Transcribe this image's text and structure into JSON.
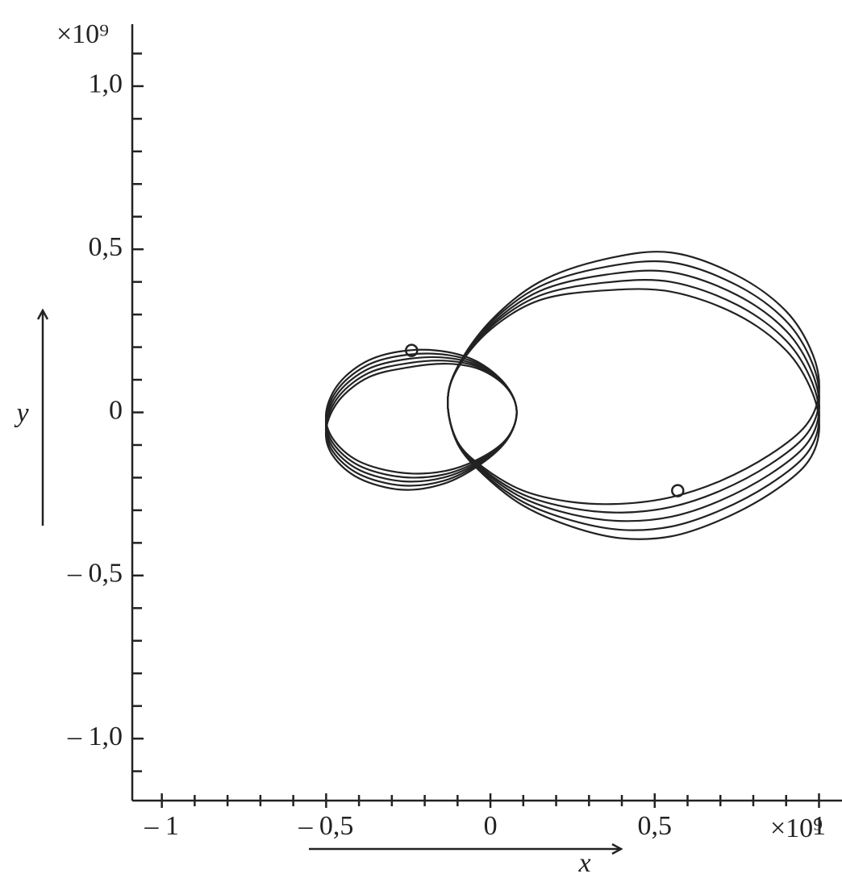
{
  "chart_data": {
    "type": "line",
    "xlabel": "x",
    "ylabel": "y",
    "x_scale_label": "×10⁹",
    "y_scale_label": "×10⁹",
    "xlim": [
      -1.09,
      1.07
    ],
    "ylim": [
      -1.19,
      1.19
    ],
    "xticks": [
      {
        "value": -1,
        "label": "– 1"
      },
      {
        "value": -0.5,
        "label": "– 0,5"
      },
      0,
      {
        "value": 0.5,
        "label": "0,5"
      },
      1
    ],
    "yticks": [
      {
        "value": -1,
        "label": "– 1,0"
      },
      {
        "value": -0.5,
        "label": "– 0,5"
      },
      0,
      {
        "value": 0.5,
        "label": "0,5"
      },
      {
        "value": 1,
        "label": "1,0"
      }
    ],
    "xminorticks": [
      -0.9,
      -0.8,
      -0.7,
      -0.6,
      -0.4,
      -0.3,
      -0.2,
      -0.1,
      0.1,
      0.2,
      0.3,
      0.4,
      0.6,
      0.7,
      0.8,
      0.9
    ],
    "yminorticks": [
      -1.1,
      -0.9,
      -0.8,
      -0.7,
      -0.6,
      -0.4,
      -0.3,
      -0.2,
      -0.1,
      0.1,
      0.2,
      0.3,
      0.4,
      0.6,
      0.7,
      0.8,
      0.9,
      1.1
    ],
    "series": [
      {
        "color": "#222222",
        "closed": true,
        "x": [
          -0.13,
          -0.1,
          -0.02,
          0.1,
          0.25,
          0.4,
          0.55,
          0.7,
          0.85,
          0.96,
          1.0,
          0.98,
          0.9,
          0.75,
          0.55,
          0.35,
          0.15,
          0.0,
          -0.1
        ],
        "values": [
          0.03,
          -0.09,
          -0.17,
          -0.24,
          -0.275,
          -0.28,
          -0.26,
          -0.21,
          -0.13,
          -0.04,
          0.06,
          0.18,
          0.31,
          0.42,
          0.49,
          0.47,
          0.4,
          0.28,
          0.14
        ]
      },
      {
        "color": "#222222",
        "closed": true,
        "x": [
          -0.13,
          -0.1,
          -0.02,
          0.1,
          0.25,
          0.4,
          0.55,
          0.7,
          0.85,
          0.96,
          1.0,
          0.98,
          0.9,
          0.75,
          0.55,
          0.35,
          0.15,
          0.0,
          -0.1
        ],
        "values": [
          0.03,
          -0.092,
          -0.176,
          -0.252,
          -0.294,
          -0.307,
          -0.29,
          -0.24,
          -0.16,
          -0.07,
          0.03,
          0.15,
          0.28,
          0.39,
          0.46,
          0.446,
          0.386,
          0.274,
          0.139
        ]
      },
      {
        "color": "#222222",
        "closed": true,
        "x": [
          -0.13,
          -0.1,
          -0.02,
          0.1,
          0.25,
          0.4,
          0.55,
          0.7,
          0.85,
          0.96,
          1.0,
          0.98,
          0.9,
          0.75,
          0.55,
          0.35,
          0.15,
          0.0,
          -0.1
        ],
        "values": [
          0.03,
          -0.093,
          -0.181,
          -0.263,
          -0.313,
          -0.333,
          -0.32,
          -0.27,
          -0.19,
          -0.1,
          0,
          0.12,
          0.25,
          0.36,
          0.43,
          0.422,
          0.372,
          0.267,
          0.137
        ]
      },
      {
        "color": "#222222",
        "closed": true,
        "x": [
          -0.13,
          -0.1,
          -0.02,
          0.1,
          0.25,
          0.4,
          0.55,
          0.7,
          0.85,
          0.96,
          1.0,
          0.98,
          0.9,
          0.75,
          0.55,
          0.35,
          0.15,
          0.0,
          -0.1
        ],
        "values": [
          0.03,
          -0.095,
          -0.187,
          -0.275,
          -0.332,
          -0.36,
          -0.35,
          -0.3,
          -0.22,
          -0.13,
          -0.03,
          0.09,
          0.22,
          0.33,
          0.4,
          0.398,
          0.358,
          0.261,
          0.136
        ]
      },
      {
        "color": "#222222",
        "closed": true,
        "x": [
          -0.13,
          -0.1,
          -0.02,
          0.1,
          0.25,
          0.4,
          0.55,
          0.7,
          0.85,
          0.96,
          1.0,
          0.98,
          0.9,
          0.75,
          0.55,
          0.35,
          0.15,
          0.0,
          -0.1
        ],
        "values": [
          0.03,
          -0.096,
          -0.192,
          -0.286,
          -0.351,
          -0.386,
          -0.38,
          -0.33,
          -0.25,
          -0.16,
          -0.06,
          0.06,
          0.19,
          0.3,
          0.37,
          0.374,
          0.344,
          0.254,
          0.134
        ]
      },
      {
        "color": "#222222",
        "closed": true,
        "x": [
          0.08,
          0.05,
          -0.03,
          -0.13,
          -0.25,
          -0.37,
          -0.46,
          -0.5,
          -0.48,
          -0.4,
          -0.27,
          -0.14,
          -0.03,
          0.05
        ],
        "values": [
          0,
          0.08,
          0.15,
          0.185,
          0.19,
          0.16,
          0.09,
          0,
          -0.08,
          -0.15,
          -0.185,
          -0.18,
          -0.14,
          -0.08
        ]
      },
      {
        "color": "#222222",
        "closed": true,
        "x": [
          0.08,
          0.05,
          -0.03,
          -0.13,
          -0.25,
          -0.37,
          -0.46,
          -0.5,
          -0.48,
          -0.4,
          -0.27,
          -0.14,
          -0.03,
          0.05
        ],
        "values": [
          0,
          0.079,
          0.145,
          0.176,
          0.177,
          0.147,
          0.077,
          -0.013,
          -0.093,
          -0.163,
          -0.198,
          -0.19,
          -0.145,
          -0.081
        ]
      },
      {
        "color": "#222222",
        "closed": true,
        "x": [
          0.08,
          0.05,
          -0.03,
          -0.13,
          -0.25,
          -0.37,
          -0.46,
          -0.5,
          -0.48,
          -0.4,
          -0.27,
          -0.14,
          -0.03,
          0.05
        ],
        "values": [
          0,
          0.077,
          0.14,
          0.167,
          0.164,
          0.134,
          0.064,
          -0.026,
          -0.106,
          -0.176,
          -0.211,
          -0.199,
          -0.15,
          -0.083
        ]
      },
      {
        "color": "#222222",
        "closed": true,
        "x": [
          0.08,
          0.05,
          -0.03,
          -0.13,
          -0.25,
          -0.37,
          -0.46,
          -0.5,
          -0.48,
          -0.4,
          -0.27,
          -0.14,
          -0.03,
          0.05
        ],
        "values": [
          0,
          0.076,
          0.136,
          0.158,
          0.151,
          0.121,
          0.051,
          -0.039,
          -0.119,
          -0.189,
          -0.224,
          -0.209,
          -0.154,
          -0.084
        ]
      },
      {
        "color": "#222222",
        "closed": true,
        "x": [
          0.08,
          0.05,
          -0.03,
          -0.13,
          -0.25,
          -0.37,
          -0.46,
          -0.5,
          -0.48,
          -0.4,
          -0.27,
          -0.14,
          -0.03,
          0.05
        ],
        "values": [
          0,
          0.075,
          0.131,
          0.149,
          0.138,
          0.108,
          0.038,
          -0.052,
          -0.132,
          -0.202,
          -0.237,
          -0.218,
          -0.159,
          -0.085
        ]
      },
      {
        "color": "#222222",
        "marker": "circle",
        "x": [
          -0.24,
          0.57
        ],
        "values": [
          0.19,
          -0.24
        ]
      }
    ]
  }
}
